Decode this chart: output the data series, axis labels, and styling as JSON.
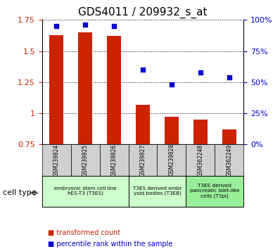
{
  "title": "GDS4011 / 209932_s_at",
  "samples": [
    "GSM239824",
    "GSM239825",
    "GSM239826",
    "GSM239827",
    "GSM239828",
    "GSM362248",
    "GSM362249"
  ],
  "transformed_count": [
    1.63,
    1.65,
    1.62,
    1.07,
    0.97,
    0.95,
    0.87
  ],
  "percentile_rank": [
    95,
    96,
    95,
    60,
    48,
    58,
    54
  ],
  "bar_color": "#cc2200",
  "dot_color": "#0000cc",
  "ylim_left": [
    0.75,
    1.75
  ],
  "ylim_right": [
    0,
    100
  ],
  "yticks_left": [
    0.75,
    1.0,
    1.25,
    1.5,
    1.75
  ],
  "ytick_labels_left": [
    "0.75",
    "1",
    "1.25",
    "1.5",
    "1.75"
  ],
  "yticks_right": [
    0,
    25,
    50,
    75,
    100
  ],
  "ytick_labels_right": [
    "0%",
    "25%",
    "50%",
    "75%",
    "100%"
  ],
  "cell_type_groups": [
    {
      "label": "embryonic stem cell line\nhES-T3 (T3ES)",
      "start": 0,
      "end": 3,
      "color": "#ccffcc"
    },
    {
      "label": "T3ES derived embr\nyoid bodies (T3EB)",
      "start": 3,
      "end": 5,
      "color": "#ccffcc"
    },
    {
      "label": "T3ES derived\npancreatic islet-like\ncells (T3pi)",
      "start": 5,
      "end": 7,
      "color": "#99ee99"
    }
  ],
  "legend_items": [
    {
      "label": "transformed count",
      "color": "#cc2200"
    },
    {
      "label": "percentile rank within the sample",
      "color": "#0000cc"
    }
  ],
  "cell_type_label": "cell type",
  "bar_bottom": 0.75
}
